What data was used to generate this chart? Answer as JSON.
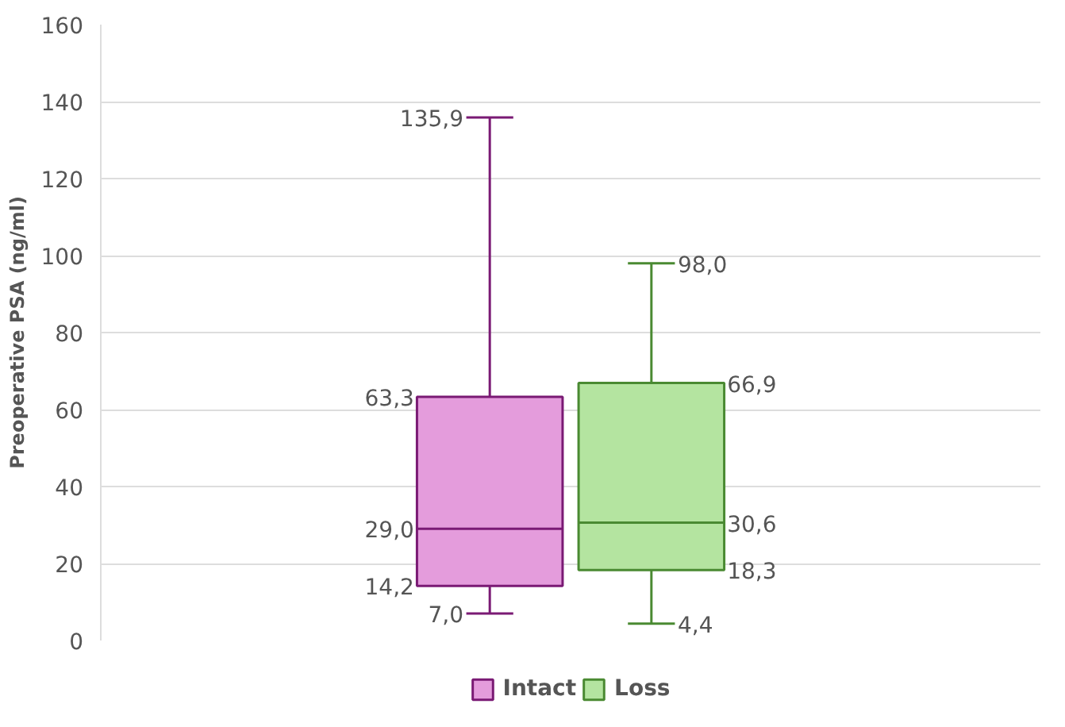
{
  "chart_data": {
    "type": "box",
    "ylabel": "Preoperative PSA (ng/ml)",
    "categories": [
      null
    ],
    "series": [
      {
        "name": "Intact",
        "color": "#e49cdc",
        "boxes": [
          {
            "low": 7.0,
            "q1": 14.2,
            "median": 29.0,
            "q3": 63.3,
            "high": 135.9
          }
        ],
        "value_labels": [
          [
            "135,9",
            "63,3",
            "29,0",
            "14,2",
            "7,0"
          ]
        ]
      },
      {
        "name": "Loss",
        "color": "#b4e4a0",
        "boxes": [
          {
            "low": 4.4,
            "q1": 18.3,
            "median": 30.6,
            "q3": 66.9,
            "high": 98.0
          }
        ],
        "value_labels": [
          [
            "98,0",
            "66,9",
            "30,6",
            "18,3",
            "4,4"
          ]
        ]
      }
    ],
    "ylim": [
      0,
      160
    ],
    "yticks": [
      0,
      20,
      40,
      60,
      80,
      100,
      120,
      140,
      160
    ],
    "grid": "y",
    "legend": "bottom"
  }
}
